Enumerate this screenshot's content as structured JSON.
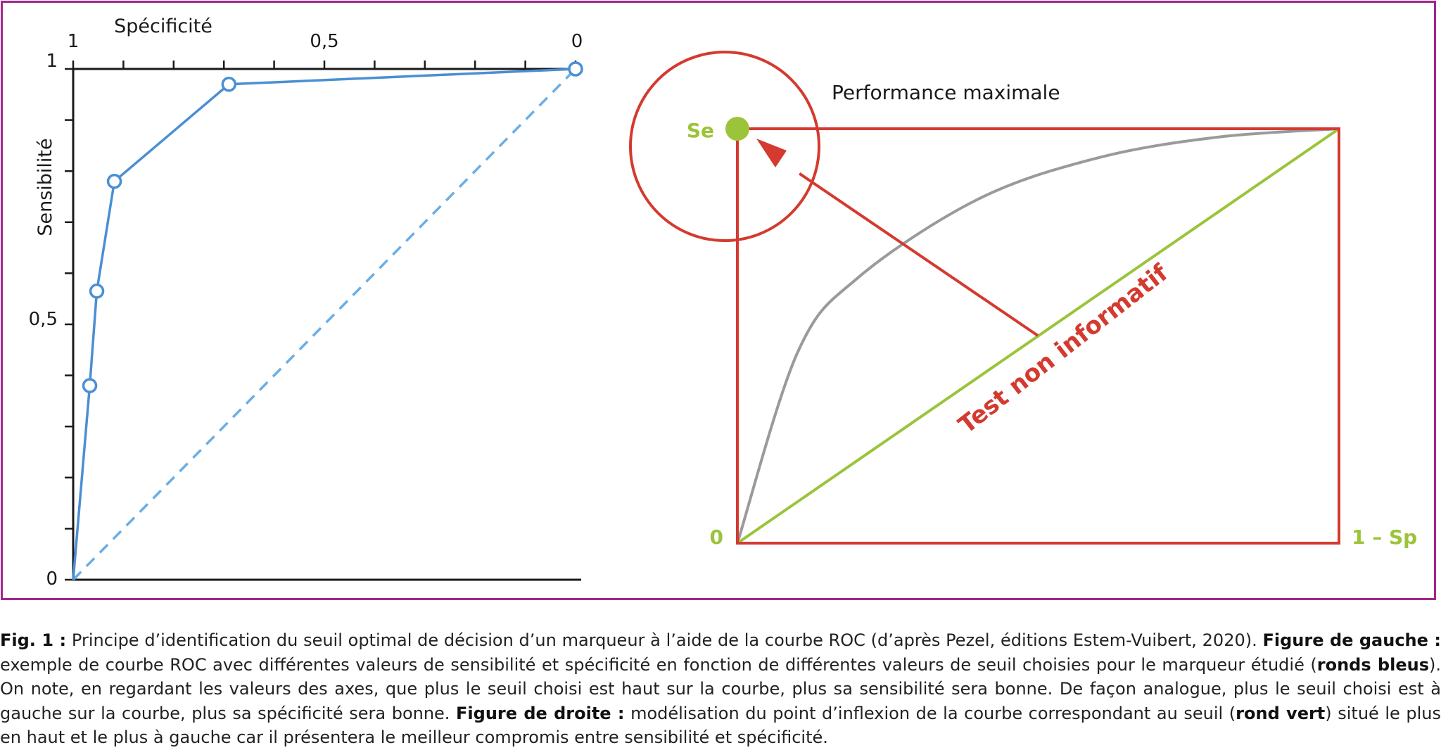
{
  "colors": {
    "frame": "#a3268b",
    "axis": "#1a1a1a",
    "roc_blue": "#4a8fd4",
    "diagonal_blue": "#6aaee6",
    "red": "#d43a2f",
    "green": "#9bc43a",
    "gray_curve": "#9a9a9a"
  },
  "chart_data": [
    {
      "type": "line",
      "title": "",
      "xlabel": "Spécificité",
      "ylabel": "Sensibilité",
      "x_axis_position": "top",
      "x_reversed": true,
      "xlim": [
        1,
        0
      ],
      "ylim": [
        0,
        1
      ],
      "xticks": [
        "1",
        "0,5",
        "0"
      ],
      "yticks": [
        "0",
        "0,5",
        "1"
      ],
      "x_minor_tick_count": 11,
      "y_minor_tick_count": 11,
      "series": [
        {
          "style": "solid-with-open-circles",
          "color": "#4a8fd4",
          "points": [
            {
              "specificity": 1.0,
              "sensitivity": 0.0
            },
            {
              "specificity": 0.967,
              "sensitivity": 0.38,
              "marker": true
            },
            {
              "specificity": 0.953,
              "sensitivity": 0.565,
              "marker": true
            },
            {
              "specificity": 0.918,
              "sensitivity": 0.78,
              "marker": true
            },
            {
              "specificity": 0.69,
              "sensitivity": 0.97,
              "marker": true
            },
            {
              "specificity": 0.0,
              "sensitivity": 1.0,
              "marker": true
            }
          ]
        },
        {
          "style": "dashed",
          "color": "#6aaee6",
          "points": [
            {
              "specificity": 1.0,
              "sensitivity": 0.0
            },
            {
              "specificity": 0.0,
              "sensitivity": 1.0
            }
          ]
        }
      ]
    },
    {
      "type": "line",
      "title": "Performance maximale",
      "origin_label": "0",
      "x_end_label": "1 – Sp",
      "y_top_label": "Se",
      "xlim": [
        0,
        1
      ],
      "ylim": [
        0,
        1
      ],
      "series": [
        {
          "style": "diagonal",
          "color": "#9bc43a",
          "points": [
            [
              0,
              0
            ],
            [
              1,
              1
            ]
          ]
        },
        {
          "style": "concave-curve",
          "color": "#9a9a9a",
          "points": [
            [
              0,
              0
            ],
            [
              0.1,
              0.46
            ],
            [
              0.2,
              0.64
            ],
            [
              0.4,
              0.83
            ],
            [
              0.6,
              0.93
            ],
            [
              0.8,
              0.98
            ],
            [
              1,
              1
            ]
          ]
        },
        {
          "style": "bounding-box",
          "color": "#d43a2f",
          "points": [
            [
              0,
              0
            ],
            [
              1,
              0
            ],
            [
              1,
              1
            ],
            [
              0,
              1
            ],
            [
              0,
              0
            ]
          ]
        }
      ],
      "annotations": [
        {
          "text": "Test non informatif",
          "color": "#d43a2f",
          "along": "diagonal"
        },
        {
          "type": "arrow",
          "from": [
            0.5,
            0.5
          ],
          "to": [
            0.04,
            0.97
          ],
          "color": "#d43a2f"
        },
        {
          "type": "circle-highlight",
          "center": [
            0,
            1
          ],
          "color": "#d43a2f"
        },
        {
          "type": "filled-point",
          "at": [
            0,
            1
          ],
          "color": "#9bc43a"
        }
      ]
    }
  ],
  "caption": {
    "fig_label": "Fig. 1 :",
    "text_1": " Principe d’identification du seuil optimal de décision d’un marqueur à l’aide de la courbe ROC (d’après Pezel, éditions Estem-Vuibert, 2020). ",
    "left_label": "Figure de gauche :",
    "text_2a": "exemple de courbe ROC avec différentes valeurs de sensibilité et spécificité en fonction de différentes valeurs de seuil choisies pour le marqueur étudié (",
    "blue_label": "ronds bleus",
    "text_2b": ").",
    "text_3": "On note, en regardant les valeurs des axes, que plus le seuil choisi est haut sur la courbe, plus sa sensibilité sera bonne. De façon analogue, plus le seuil choisi est à",
    "text_4": "gauche sur la courbe, plus sa spécificité sera bonne. ",
    "right_label": "Figure de droite :",
    "text_4b": " modélisation du point d’inflexion de la courbe correspondant au seuil (",
    "green_label": "rond vert",
    "text_4c": ") situé le plus",
    "text_5": "en haut et le plus à gauche car il présentera le meilleur compromis entre sensibilité et spécificité."
  }
}
